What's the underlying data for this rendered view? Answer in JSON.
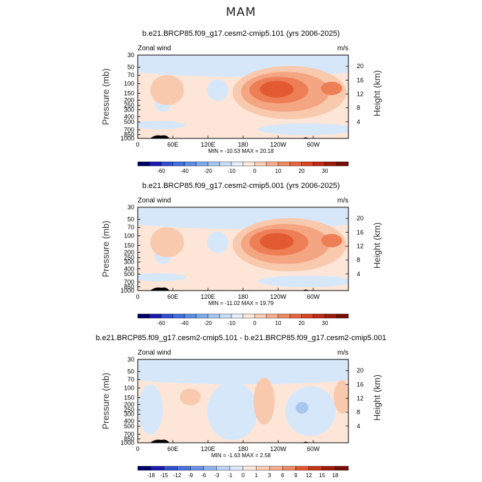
{
  "page_title": "MAM",
  "chart_data": [
    {
      "type": "heatmap",
      "title": "b.e21.BRCP85.f09_g17.cesm2-cmip5.101 (yrs 2006-2025)",
      "corner_left": "Zonal wind",
      "corner_right": "m/s",
      "ylabel": "Pressure (mb)",
      "ylabel_right": "Height (km)",
      "x_ticks": [
        "0",
        "60E",
        "120E",
        "180",
        "120W",
        "60W"
      ],
      "y_ticks": [
        "30",
        "50",
        "70",
        "100",
        "150",
        "200",
        "250",
        "300",
        "400",
        "500",
        "700",
        "850",
        "1000"
      ],
      "y_ticks_right": [
        "20",
        "16",
        "12",
        "8",
        "4"
      ],
      "stats": "MIN = -10.53   MAX =  20.18",
      "colorbar_labels": [
        "-60",
        "-40",
        "-20",
        "-10",
        "0",
        "10",
        "20",
        "30"
      ],
      "min": -10.53,
      "max": 20.18
    },
    {
      "type": "heatmap",
      "title": "b.e21.BRCP85.f09_g17.cesm2-cmip5.001 (yrs 2006-2025)",
      "corner_left": "Zonal wind",
      "corner_right": "m/s",
      "ylabel": "Pressure (mb)",
      "ylabel_right": "Height (km)",
      "x_ticks": [
        "0",
        "60E",
        "120E",
        "180",
        "120W",
        "60W"
      ],
      "y_ticks": [
        "30",
        "50",
        "70",
        "100",
        "150",
        "200",
        "250",
        "300",
        "400",
        "500",
        "700",
        "850",
        "1000"
      ],
      "y_ticks_right": [
        "20",
        "16",
        "12",
        "8",
        "4"
      ],
      "stats": "MIN = -11.02   MAX =  19.79",
      "colorbar_labels": [
        "-60",
        "-40",
        "-20",
        "-10",
        "0",
        "10",
        "20",
        "30"
      ],
      "min": -11.02,
      "max": 19.79
    },
    {
      "type": "heatmap",
      "title": "b.e21.BRCP85.f09_g17.cesm2-cmip5.101 - b.e21.BRCP85.f09_g17.cesm2-cmip5.001",
      "corner_left": "Zonal wind",
      "corner_right": "m/s",
      "ylabel": "Pressure (mb)",
      "ylabel_right": "Height (km)",
      "x_ticks": [
        "0",
        "60E",
        "120E",
        "180",
        "120W",
        "60W"
      ],
      "y_ticks": [
        "30",
        "50",
        "70",
        "100",
        "150",
        "200",
        "250",
        "300",
        "400",
        "500",
        "700",
        "850",
        "1000"
      ],
      "y_ticks_right": [
        "20",
        "16",
        "12",
        "8",
        "4"
      ],
      "stats": "MIN = -1.63   MAX =  2.58",
      "colorbar_labels": [
        "-18",
        "-15",
        "-12",
        "-9",
        "-6",
        "-3",
        "-1",
        "0",
        "1",
        "3",
        "6",
        "9",
        "12",
        "15",
        "18"
      ],
      "min": -1.63,
      "max": 2.58
    }
  ],
  "colors": {
    "cb_full": [
      "#000066",
      "#1b1bb3",
      "#2f4fd0",
      "#3f6fe0",
      "#5a8ee8",
      "#7eaaef",
      "#a4c6f4",
      "#c8def8",
      "#e4effb",
      "#fde8dc",
      "#f9cdb5",
      "#f5ad8c",
      "#f08a62",
      "#e9663d",
      "#dc4522",
      "#bf2a14",
      "#a01a0c",
      "#7a0c06"
    ],
    "cb_diff": [
      "#000066",
      "#1b1bb3",
      "#3050d0",
      "#4a72e0",
      "#6a92ea",
      "#92b4f1",
      "#bcd5f7",
      "#dce9fb",
      "#fde8dc",
      "#f9cdb5",
      "#f5ad8c",
      "#f08a62",
      "#e4572e",
      "#c83318",
      "#a01a0c",
      "#7a0c06"
    ],
    "pos1": "#fde6d7",
    "pos2": "#f9c9ae",
    "pos3": "#f4a582",
    "pos4": "#ee7e55",
    "pos5": "#e45a30",
    "neg1": "#d7e7fa",
    "neg2": "#a7c7f0",
    "neg3": "#7aa6ea"
  }
}
